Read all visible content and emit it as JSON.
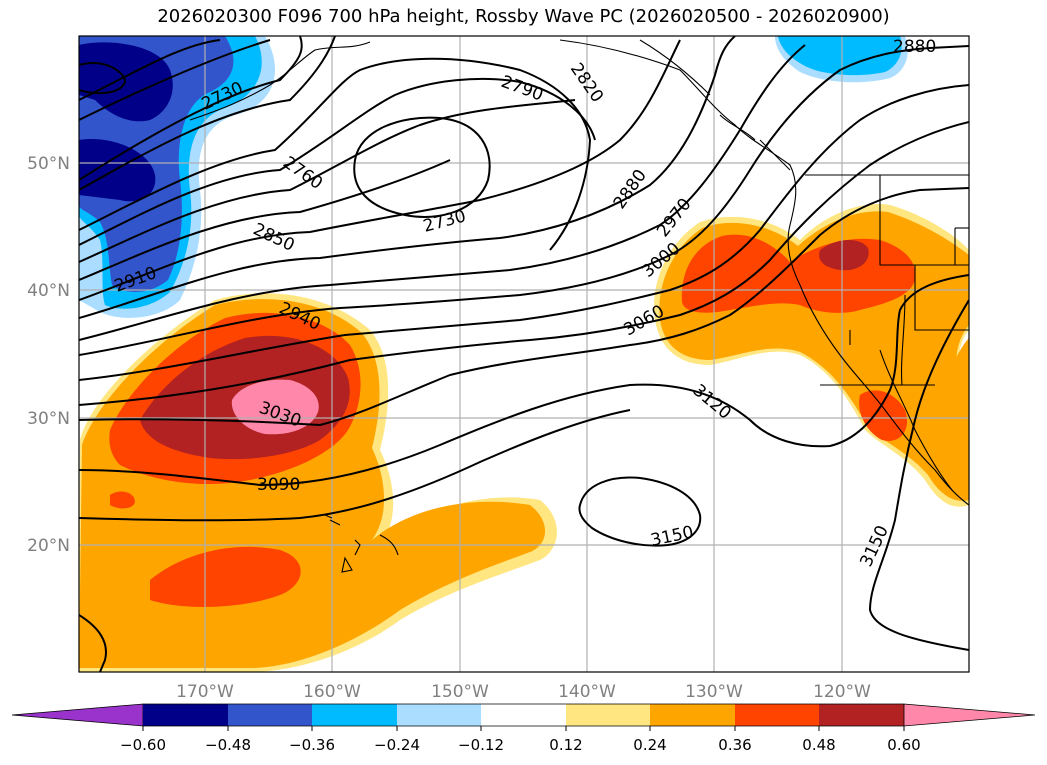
{
  "title": "2026020300 F096 700 hPa height, Rossby Wave PC (2026020500 - 2026020900)",
  "axes": {
    "lon_labels": [
      "170°W",
      "160°W",
      "150°W",
      "140°W",
      "130°W",
      "120°W"
    ],
    "lat_labels": [
      "50°N",
      "40°N",
      "30°N",
      "20°N"
    ]
  },
  "colorbar": {
    "tick_labels": [
      "−0.60",
      "−0.48",
      "−0.36",
      "−0.24",
      "−0.12",
      "0.12",
      "0.24",
      "0.36",
      "0.48",
      "0.60"
    ],
    "colors": [
      "#9933cc",
      "#000088",
      "#3355cc",
      "#00bbff",
      "#aaddff",
      "#ffffff",
      "#ffe680",
      "#ffa500",
      "#ff4400",
      "#b22222",
      "#ff88aa",
      "#ff88aa"
    ]
  },
  "contour_labels": [
    "2730",
    "2790",
    "2820",
    "2880",
    "2760",
    "2730",
    "2880",
    "2850",
    "2970",
    "2910",
    "3000",
    "2940",
    "3060",
    "3030",
    "3120",
    "3090",
    "3150",
    "3150"
  ],
  "colors": {
    "grid": "#b0b0b0",
    "contour": "#000000",
    "coast": "#000000"
  }
}
